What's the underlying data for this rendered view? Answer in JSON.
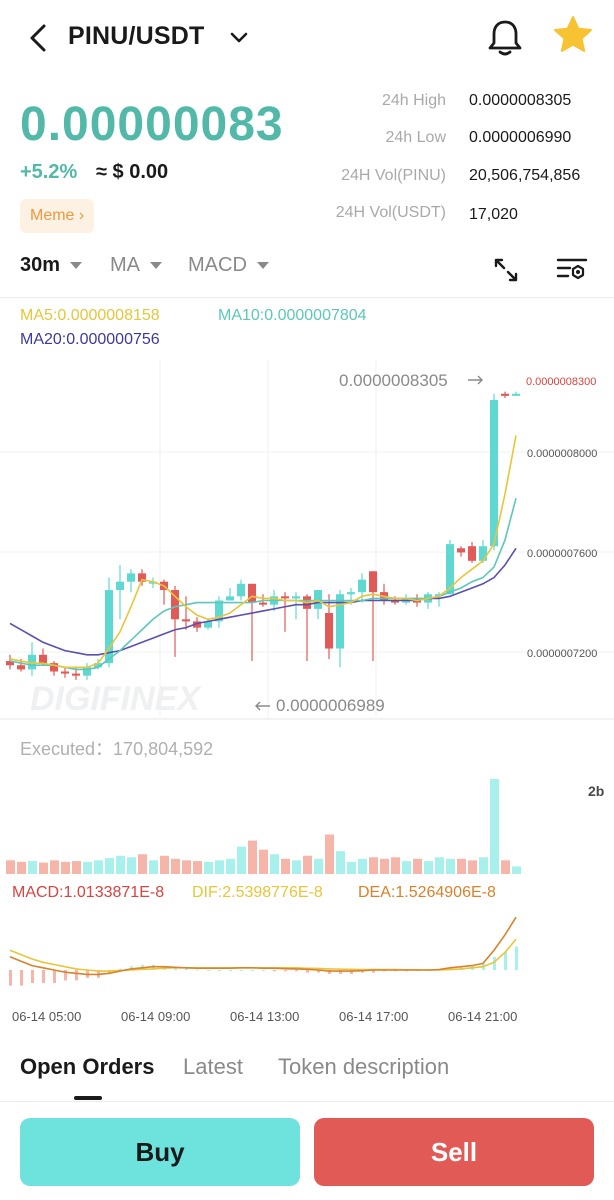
{
  "header": {
    "pair": "PINU/USDT",
    "icons": [
      "back-icon",
      "chevron-down-icon",
      "bell-icon",
      "star-icon"
    ]
  },
  "ticker": {
    "price": "0.00000083",
    "change": "+5.2%",
    "approx": "≈ $ 0.00",
    "tag": "Meme ›"
  },
  "stats": [
    {
      "label": "24h High",
      "value": "0.0000008305"
    },
    {
      "label": "24h Low",
      "value": "0.0000006990"
    },
    {
      "label": "24H Vol(PINU)",
      "value": "20,506,754,856"
    },
    {
      "label": "24H Vol(USDT)",
      "value": "17,020"
    }
  ],
  "toolbar": {
    "interval": "30m",
    "ma": "MA",
    "macd": "MACD"
  },
  "ma_legend": {
    "ma5": "MA5:0.0000008158",
    "ma10": "MA10:0.0000007804",
    "ma20": "MA20:0.000000756"
  },
  "price_labels": {
    "high_marker": "0.0000008305",
    "low_marker": "0.0000006989",
    "last": "0.0000008300"
  },
  "executed": "Executed：170,804,592",
  "vol_scale": "2b",
  "macd_legend": {
    "macd": "MACD:1.0133871E-8",
    "dif": "DIF:2.5398776E-8",
    "dea": "DEA:1.5264906E-8"
  },
  "time_labels": [
    "06-14 05:00",
    "06-14 09:00",
    "06-14 13:00",
    "06-14 17:00",
    "06-14 21:00"
  ],
  "watermark": "DIGIFINEX",
  "colors": {
    "up": "#5fd8d2",
    "down": "#e25a57",
    "ma5": "#e8c53a",
    "ma10": "#5cc7bb",
    "ma20": "#5b4fb0",
    "accent": "#52b9a8"
  },
  "chart_data": {
    "type": "candlestick",
    "y_ticks": [
      "0.0000008300",
      "0.0000008000",
      "0.0000007600",
      "0.0000007200"
    ],
    "candles": [
      {
        "o": 7.02e-07,
        "c": 7e-07,
        "h": 7.05e-07,
        "l": 6.98e-07
      },
      {
        "o": 7e-07,
        "c": 6.98e-07,
        "h": 7.03e-07,
        "l": 6.97e-07
      },
      {
        "o": 6.98e-07,
        "c": 7.05e-07,
        "h": 7.11e-07,
        "l": 6.95e-07
      },
      {
        "o": 7.05e-07,
        "c": 7.01e-07,
        "h": 7.08e-07,
        "l": 7e-07
      },
      {
        "o": 7.01e-07,
        "c": 6.97e-07,
        "h": 7.02e-07,
        "l": 6.95e-07
      },
      {
        "o": 6.97e-07,
        "c": 6.96e-07,
        "h": 6.99e-07,
        "l": 6.94e-07
      },
      {
        "o": 6.96e-07,
        "c": 6.95e-07,
        "h": 6.99e-07,
        "l": 6.93e-07
      },
      {
        "o": 6.95e-07,
        "c": 6.99e-07,
        "h": 7.01e-07,
        "l": 6.93e-07
      },
      {
        "o": 6.99e-07,
        "c": 7.01e-07,
        "h": 7.03e-07,
        "l": 6.98e-07
      },
      {
        "o": 7.01e-07,
        "c": 7.36e-07,
        "h": 7.42e-07,
        "l": 6.99e-07
      },
      {
        "o": 7.36e-07,
        "c": 7.4e-07,
        "h": 7.48e-07,
        "l": 7.22e-07
      },
      {
        "o": 7.4e-07,
        "c": 7.44e-07,
        "h": 7.46e-07,
        "l": 7.35e-07
      },
      {
        "o": 7.44e-07,
        "c": 7.4e-07,
        "h": 7.46e-07,
        "l": 7.38e-07
      },
      {
        "o": 7.4e-07,
        "c": 7.4e-07,
        "h": 7.42e-07,
        "l": 7.37e-07
      },
      {
        "o": 7.4e-07,
        "c": 7.36e-07,
        "h": 7.41e-07,
        "l": 7.29e-07
      },
      {
        "o": 7.36e-07,
        "c": 7.22e-07,
        "h": 7.38e-07,
        "l": 7.04e-07
      },
      {
        "o": 7.22e-07,
        "c": 7.21e-07,
        "h": 7.33e-07,
        "l": 7.17e-07
      },
      {
        "o": 7.21e-07,
        "c": 7.18e-07,
        "h": 7.23e-07,
        "l": 7.16e-07
      },
      {
        "o": 7.18e-07,
        "c": 7.21e-07,
        "h": 7.22e-07,
        "l": 7.17e-07
      },
      {
        "o": 7.21e-07,
        "c": 7.31e-07,
        "h": 7.33e-07,
        "l": 7.18e-07
      },
      {
        "o": 7.31e-07,
        "c": 7.33e-07,
        "h": 7.37e-07,
        "l": 7.31e-07
      },
      {
        "o": 7.33e-07,
        "c": 7.39e-07,
        "h": 7.41e-07,
        "l": 7.31e-07
      },
      {
        "o": 7.39e-07,
        "c": 7.3e-07,
        "h": 7.39e-07,
        "l": 7.02e-07
      },
      {
        "o": 7.3e-07,
        "c": 7.29e-07,
        "h": 7.34e-07,
        "l": 7.28e-07
      },
      {
        "o": 7.29e-07,
        "c": 7.33e-07,
        "h": 7.36e-07,
        "l": 7.26e-07
      },
      {
        "o": 7.33e-07,
        "c": 7.32e-07,
        "h": 7.35e-07,
        "l": 7.16e-07
      },
      {
        "o": 7.32e-07,
        "c": 7.33e-07,
        "h": 7.35e-07,
        "l": 7.22e-07
      },
      {
        "o": 7.33e-07,
        "c": 7.27e-07,
        "h": 7.34e-07,
        "l": 7.02e-07
      },
      {
        "o": 7.27e-07,
        "c": 7.36e-07,
        "h": 7.36e-07,
        "l": 7.22e-07
      },
      {
        "o": 7.25e-07,
        "c": 7.08e-07,
        "h": 7.34e-07,
        "l": 7.03e-07
      },
      {
        "o": 7.08e-07,
        "c": 7.34e-07,
        "h": 7.36e-07,
        "l": 6.99e-07
      },
      {
        "o": 7.34e-07,
        "c": 7.35e-07,
        "h": 7.37e-07,
        "l": 7.29e-07
      },
      {
        "o": 7.35e-07,
        "c": 7.41e-07,
        "h": 7.44e-07,
        "l": 7.3e-07
      },
      {
        "o": 7.45e-07,
        "c": 7.35e-07,
        "h": 7.45e-07,
        "l": 7.02e-07
      },
      {
        "o": 7.35e-07,
        "c": 7.31e-07,
        "h": 7.39e-07,
        "l": 7.29e-07
      },
      {
        "o": 7.31e-07,
        "c": 7.3e-07,
        "h": 7.33e-07,
        "l": 7.29e-07
      },
      {
        "o": 7.3e-07,
        "c": 7.32e-07,
        "h": 7.34e-07,
        "l": 7.29e-07
      },
      {
        "o": 7.32e-07,
        "c": 7.3e-07,
        "h": 7.34e-07,
        "l": 7.28e-07
      },
      {
        "o": 7.3e-07,
        "c": 7.34e-07,
        "h": 7.35e-07,
        "l": 7.27e-07
      },
      {
        "o": 7.34e-07,
        "c": 7.34e-07,
        "h": 7.35e-07,
        "l": 7.28e-07
      },
      {
        "o": 7.34e-07,
        "c": 7.58e-07,
        "h": 7.6e-07,
        "l": 7.34e-07
      },
      {
        "o": 7.56e-07,
        "c": 7.54e-07,
        "h": 7.57e-07,
        "l": 7.52e-07
      },
      {
        "o": 7.57e-07,
        "c": 7.5e-07,
        "h": 7.59e-07,
        "l": 7.49e-07
      },
      {
        "o": 7.5e-07,
        "c": 7.57e-07,
        "h": 7.6e-07,
        "l": 7.49e-07
      },
      {
        "o": 7.57e-07,
        "c": 8.27e-07,
        "h": 8.3e-07,
        "l": 7.55e-07
      },
      {
        "o": 8.3e-07,
        "c": 8.29e-07,
        "h": 8.31e-07,
        "l": 8.28e-07
      },
      {
        "o": 8.29e-07,
        "c": 8.3e-07,
        "h": 8.31e-07,
        "l": 8.29e-07
      }
    ],
    "ma5": [
      7.03e-07,
      7.02e-07,
      7.01e-07,
      7.01e-07,
      7e-07,
      6.99e-07,
      6.99e-07,
      6.99e-07,
      7.01e-07,
      7.08e-07,
      7.16e-07,
      7.28e-07,
      7.41e-07,
      7.4e-07,
      7.38e-07,
      7.33e-07,
      7.28e-07,
      7.24e-07,
      7.22e-07,
      7.23e-07,
      7.25e-07,
      7.29e-07,
      7.33e-07,
      7.32e-07,
      7.32e-07,
      7.31e-07,
      7.31e-07,
      7.3e-07,
      7.31e-07,
      7.28e-07,
      7.29e-07,
      7.3e-07,
      7.33e-07,
      7.34e-07,
      7.33e-07,
      7.32e-07,
      7.32e-07,
      7.31e-07,
      7.32e-07,
      7.33e-07,
      7.37e-07,
      7.42e-07,
      7.46e-07,
      7.5e-07,
      7.58e-07,
      7.82e-07,
      8.1e-07
    ],
    "ma10": [
      7.02e-07,
      7.01e-07,
      7e-07,
      7e-07,
      7e-07,
      6.99e-07,
      6.98e-07,
      6.98e-07,
      6.99e-07,
      7.03e-07,
      7.07e-07,
      7.12e-07,
      7.17e-07,
      7.22e-07,
      7.26e-07,
      7.28e-07,
      7.29e-07,
      7.3e-07,
      7.3e-07,
      7.3e-07,
      7.3e-07,
      7.3e-07,
      7.3e-07,
      7.31e-07,
      7.31e-07,
      7.31e-07,
      7.31e-07,
      7.31e-07,
      7.31e-07,
      7.31e-07,
      7.31e-07,
      7.31e-07,
      7.31e-07,
      7.32e-07,
      7.32e-07,
      7.32e-07,
      7.32e-07,
      7.32e-07,
      7.32e-07,
      7.33e-07,
      7.35e-07,
      7.37e-07,
      7.4e-07,
      7.42e-07,
      7.47e-07,
      7.6e-07,
      7.8e-07
    ],
    "ma20": [
      7.2e-07,
      7.17e-07,
      7.14e-07,
      7.11e-07,
      7.09e-07,
      7.07e-07,
      7.06e-07,
      7.05e-07,
      7.05e-07,
      7.06e-07,
      7.07e-07,
      7.09e-07,
      7.11e-07,
      7.13e-07,
      7.15e-07,
      7.17e-07,
      7.18e-07,
      7.2e-07,
      7.21e-07,
      7.22e-07,
      7.23e-07,
      7.24e-07,
      7.25e-07,
      7.26e-07,
      7.27e-07,
      7.28e-07,
      7.29e-07,
      7.29e-07,
      7.3e-07,
      7.3e-07,
      7.3e-07,
      7.3e-07,
      7.31e-07,
      7.31e-07,
      7.31e-07,
      7.31e-07,
      7.31e-07,
      7.31e-07,
      7.32e-07,
      7.32e-07,
      7.33e-07,
      7.35e-07,
      7.37e-07,
      7.39e-07,
      7.42e-07,
      7.48e-07,
      7.56e-07
    ],
    "volume": [
      0.18,
      0.16,
      0.17,
      0.15,
      0.18,
      0.16,
      0.17,
      0.16,
      0.18,
      0.21,
      0.24,
      0.22,
      0.26,
      0.18,
      0.24,
      0.2,
      0.18,
      0.17,
      0.16,
      0.18,
      0.2,
      0.36,
      0.44,
      0.32,
      0.26,
      0.2,
      0.18,
      0.24,
      0.2,
      0.52,
      0.3,
      0.16,
      0.2,
      0.22,
      0.2,
      0.22,
      0.17,
      0.2,
      0.17,
      0.22,
      0.2,
      0.2,
      0.18,
      0.22,
      1.25,
      0.18,
      0.1
    ],
    "macd_hist": [
      -0.6,
      -0.6,
      -0.5,
      -0.5,
      -0.5,
      -0.4,
      -0.4,
      -0.3,
      -0.3,
      -0.1,
      0.05,
      0.15,
      0.2,
      0.2,
      0.15,
      0.1,
      0.05,
      0.02,
      0.0,
      0.0,
      0.0,
      0.0,
      0.0,
      0.0,
      -0.05,
      -0.05,
      -0.05,
      -0.1,
      -0.1,
      -0.15,
      -0.15,
      -0.15,
      -0.1,
      -0.1,
      -0.05,
      -0.05,
      -0.05,
      -0.03,
      0.0,
      0.02,
      0.05,
      0.1,
      0.15,
      0.25,
      0.5,
      0.7,
      0.9
    ],
    "dif": [
      0.6,
      0.4,
      0.2,
      0.1,
      0.0,
      -0.1,
      -0.15,
      -0.2,
      -0.2,
      -0.15,
      -0.05,
      0.05,
      0.1,
      0.15,
      0.15,
      0.12,
      0.1,
      0.08,
      0.08,
      0.08,
      0.08,
      0.1,
      0.1,
      0.08,
      0.08,
      0.06,
      0.05,
      0.03,
      0.0,
      -0.05,
      -0.05,
      -0.05,
      -0.03,
      0.0,
      0.0,
      0.0,
      0.0,
      0.0,
      0.0,
      0.02,
      0.1,
      0.15,
      0.2,
      0.3,
      0.9,
      1.6,
      2.4
    ],
    "dea": [
      0.9,
      0.7,
      0.5,
      0.35,
      0.25,
      0.15,
      0.05,
      0.0,
      -0.05,
      -0.05,
      -0.02,
      0.0,
      0.03,
      0.05,
      0.08,
      0.1,
      0.1,
      0.1,
      0.1,
      0.1,
      0.1,
      0.1,
      0.1,
      0.1,
      0.1,
      0.1,
      0.1,
      0.08,
      0.07,
      0.05,
      0.04,
      0.03,
      0.02,
      0.02,
      0.02,
      0.02,
      0.01,
      0.01,
      0.0,
      0.0,
      0.02,
      0.05,
      0.1,
      0.15,
      0.35,
      0.8,
      1.4
    ],
    "ylim": [
      6.8e-07,
      8.5e-07
    ]
  }
}
